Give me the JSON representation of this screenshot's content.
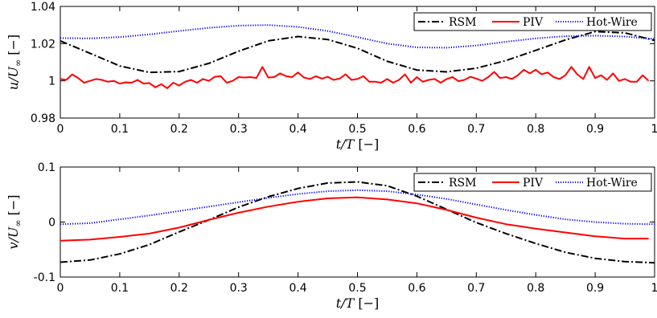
{
  "chart_data": [
    {
      "type": "line",
      "ylabel_var": "u/U",
      "ylabel_sub": "∞",
      "ylabel_unit": "[−]",
      "xlabel_var": "t/T",
      "xlabel_unit": "[−]",
      "xlim": [
        0,
        1
      ],
      "ylim": [
        0.98,
        1.04
      ],
      "xticks": [
        0,
        0.1,
        0.2,
        0.3,
        0.4,
        0.5,
        0.6,
        0.7,
        0.8,
        0.9,
        1
      ],
      "xtick_labels": [
        "0",
        "0.1",
        "0.2",
        "0.3",
        "0.4",
        "0.5",
        "0.6",
        "0.7",
        "0.8",
        "0.9",
        "1"
      ],
      "yticks": [
        0.98,
        1,
        1.02,
        1.04
      ],
      "ytick_labels": [
        "0.98",
        "1",
        "1.02",
        "1.04"
      ],
      "legend_position": "top-right",
      "series": [
        {
          "name": "RSM",
          "color": "#000000",
          "style": "dashdot",
          "x": [
            0,
            0.05,
            0.1,
            0.15,
            0.2,
            0.25,
            0.3,
            0.35,
            0.4,
            0.45,
            0.5,
            0.55,
            0.6,
            0.65,
            0.7,
            0.75,
            0.8,
            0.85,
            0.9,
            0.95,
            1.0
          ],
          "y": [
            1.0215,
            1.0148,
            1.008,
            1.0045,
            1.005,
            1.0094,
            1.0159,
            1.0215,
            1.0238,
            1.0222,
            1.0175,
            1.0105,
            1.0058,
            1.0048,
            1.0068,
            1.0109,
            1.0164,
            1.022,
            1.0265,
            1.0258,
            1.0217
          ]
        },
        {
          "name": "PIV",
          "color": "#ff0000",
          "style": "solid",
          "x": [
            0,
            0.01,
            0.02,
            0.03,
            0.04,
            0.05,
            0.06,
            0.07,
            0.08,
            0.09,
            0.1,
            0.11,
            0.12,
            0.13,
            0.14,
            0.15,
            0.16,
            0.17,
            0.18,
            0.19,
            0.2,
            0.21,
            0.22,
            0.23,
            0.24,
            0.25,
            0.26,
            0.27,
            0.28,
            0.29,
            0.3,
            0.31,
            0.32,
            0.33,
            0.34,
            0.35,
            0.36,
            0.37,
            0.38,
            0.39,
            0.4,
            0.41,
            0.42,
            0.43,
            0.44,
            0.45,
            0.46,
            0.47,
            0.48,
            0.49,
            0.5,
            0.51,
            0.52,
            0.53,
            0.54,
            0.55,
            0.56,
            0.57,
            0.58,
            0.59,
            0.6,
            0.61,
            0.62,
            0.63,
            0.64,
            0.65,
            0.66,
            0.67,
            0.68,
            0.69,
            0.7,
            0.71,
            0.72,
            0.73,
            0.74,
            0.75,
            0.76,
            0.77,
            0.78,
            0.79,
            0.8,
            0.81,
            0.82,
            0.83,
            0.84,
            0.85,
            0.86,
            0.87,
            0.88,
            0.89,
            0.9,
            0.91,
            0.92,
            0.93,
            0.94,
            0.95,
            0.96,
            0.97,
            0.98,
            0.99
          ],
          "y": [
            1.001,
            1.0005,
            1.0035,
            1.0015,
            0.999,
            1.0,
            1.001,
            1.0005,
            0.9995,
            1.0,
            0.9985,
            0.9992,
            0.999,
            1.0005,
            0.9985,
            0.9988,
            0.9965,
            0.9982,
            0.996,
            0.999,
            0.9975,
            0.9995,
            1.0005,
            0.999,
            1.001,
            1.0,
            1.0022,
            1.0025,
            0.999,
            1.0,
            1.002,
            1.0018,
            1.002,
            1.0015,
            1.0075,
            1.0018,
            1.002,
            1.004,
            1.0025,
            1.002,
            1.0045,
            1.0018,
            1.001,
            1.0025,
            1.0012,
            1.0022,
            1.0005,
            1.0012,
            1.0035,
            1.0005,
            1.001,
            1.0025,
            0.9995,
            0.9995,
            0.999,
            1.001,
            0.999,
            1.0005,
            1.0035,
            0.999,
            1.002,
            0.9995,
            1.0005,
            1.001,
            0.999,
            1.001,
            1.002,
            0.9998,
            1.0005,
            1.0022,
            1.0012,
            1.0,
            1.002,
            1.0048,
            1.0015,
            1.002,
            1.001,
            1.003,
            1.006,
            1.004,
            1.006,
            1.0035,
            1.0045,
            1.002,
            1.001,
            1.003,
            1.0075,
            1.0035,
            1.001,
            1.0075,
            1.0015,
            1.003,
            1.0005,
            1.004,
            1.0,
            1.001,
            0.9995,
            0.9995,
            1.003,
            1.0
          ]
        },
        {
          "name": "Hot-Wire",
          "color": "#0000ff",
          "style": "dotted",
          "x": [
            0,
            0.05,
            0.1,
            0.15,
            0.2,
            0.25,
            0.3,
            0.35,
            0.4,
            0.45,
            0.5,
            0.55,
            0.6,
            0.65,
            0.7,
            0.75,
            0.8,
            0.85,
            0.9,
            0.95,
            1.0
          ],
          "y": [
            1.023,
            1.0228,
            1.0235,
            1.025,
            1.0268,
            1.0285,
            1.0297,
            1.03,
            1.029,
            1.0268,
            1.0235,
            1.02,
            1.018,
            1.0178,
            1.019,
            1.021,
            1.0228,
            1.024,
            1.0243,
            1.0238,
            1.0225
          ]
        }
      ]
    },
    {
      "type": "line",
      "ylabel_var": "v/U",
      "ylabel_sub": "∞",
      "ylabel_unit": "[−]",
      "xlabel_var": "t/T",
      "xlabel_unit": "[−]",
      "xlim": [
        0,
        1
      ],
      "ylim": [
        -0.1,
        0.1
      ],
      "xticks": [
        0,
        0.1,
        0.2,
        0.3,
        0.4,
        0.5,
        0.6,
        0.7,
        0.8,
        0.9,
        1
      ],
      "xtick_labels": [
        "0",
        "0.1",
        "0.2",
        "0.3",
        "0.4",
        "0.5",
        "0.6",
        "0.7",
        "0.8",
        "0.9",
        "1"
      ],
      "yticks": [
        -0.1,
        0,
        0.1
      ],
      "ytick_labels": [
        "-0.1",
        "0",
        "0.1"
      ],
      "legend_position": "top-right",
      "series": [
        {
          "name": "RSM",
          "color": "#000000",
          "style": "dashdot",
          "x": [
            0,
            0.05,
            0.1,
            0.15,
            0.2,
            0.25,
            0.3,
            0.35,
            0.4,
            0.45,
            0.5,
            0.55,
            0.6,
            0.65,
            0.7,
            0.75,
            0.8,
            0.85,
            0.9,
            0.95,
            1.0
          ],
          "y": [
            -0.073,
            -0.069,
            -0.058,
            -0.041,
            -0.018,
            0.004,
            0.027,
            0.046,
            0.061,
            0.071,
            0.073,
            0.066,
            0.047,
            0.023,
            -0.001,
            -0.021,
            -0.039,
            -0.055,
            -0.066,
            -0.072,
            -0.074
          ]
        },
        {
          "name": "PIV",
          "color": "#ff0000",
          "style": "solid",
          "x": [
            0,
            0.05,
            0.1,
            0.15,
            0.2,
            0.25,
            0.3,
            0.35,
            0.4,
            0.45,
            0.5,
            0.55,
            0.6,
            0.65,
            0.7,
            0.75,
            0.8,
            0.85,
            0.9,
            0.95,
            0.99
          ],
          "y": [
            -0.034,
            -0.032,
            -0.027,
            -0.021,
            -0.01,
            0.004,
            0.017,
            0.028,
            0.037,
            0.043,
            0.045,
            0.041,
            0.034,
            0.022,
            0.008,
            -0.004,
            -0.012,
            -0.019,
            -0.026,
            -0.03,
            -0.03
          ]
        },
        {
          "name": "Hot-Wire",
          "color": "#0000ff",
          "style": "dotted",
          "x": [
            0,
            0.05,
            0.1,
            0.15,
            0.2,
            0.25,
            0.3,
            0.35,
            0.4,
            0.45,
            0.5,
            0.55,
            0.6,
            0.65,
            0.7,
            0.75,
            0.8,
            0.85,
            0.9,
            0.95,
            1.0
          ],
          "y": [
            -0.004,
            -0.002,
            0.005,
            0.012,
            0.02,
            0.028,
            0.036,
            0.044,
            0.051,
            0.056,
            0.058,
            0.056,
            0.05,
            0.042,
            0.032,
            0.022,
            0.013,
            0.005,
            0.0,
            -0.003,
            -0.004
          ]
        }
      ]
    }
  ]
}
